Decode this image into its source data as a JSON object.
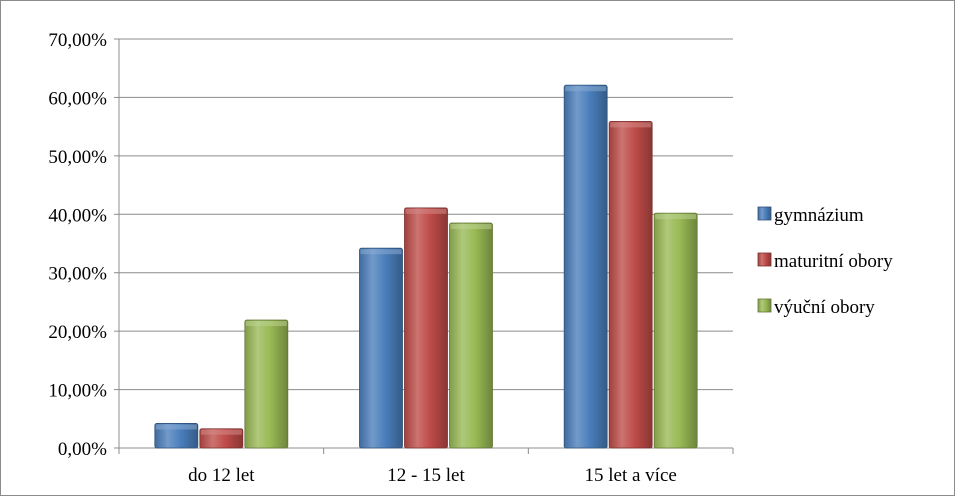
{
  "chart_data": {
    "type": "bar",
    "title": "",
    "xlabel": "",
    "ylabel": "",
    "categories": [
      "do 12 let",
      "12 - 15 let",
      "15 let a více"
    ],
    "series": [
      {
        "name": "gymnázium",
        "values": [
          4.2,
          34.2,
          62.1
        ],
        "color": "#4a7ebb"
      },
      {
        "name": "maturitní obory",
        "values": [
          3.3,
          41.1,
          55.9
        ],
        "color": "#be4b48"
      },
      {
        "name": "výuční obory",
        "values": [
          21.9,
          38.5,
          40.2
        ],
        "color": "#98b954"
      }
    ],
    "ylim": [
      0,
      70
    ],
    "yticks": [
      "0,00%",
      "10,00%",
      "20,00%",
      "30,00%",
      "40,00%",
      "50,00%",
      "60,00%",
      "70,00%"
    ],
    "grid": true,
    "legend_position": "right"
  }
}
